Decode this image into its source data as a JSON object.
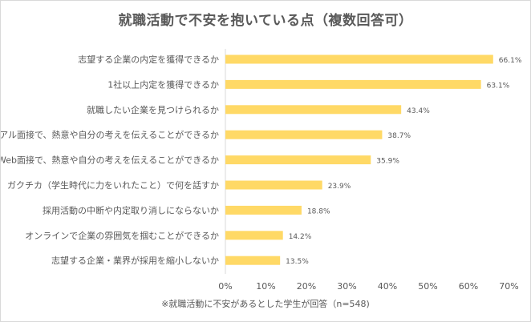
{
  "chart_data": {
    "type": "bar",
    "orientation": "horizontal",
    "title": "就職活動で不安を抱いている点（複数回答可）",
    "categories": [
      "志望する企業の内定を獲得できるか",
      "1社以上内定を獲得できるか",
      "就職したい企業を見つけられるか",
      "リアル面接で、熱意や自分の考えを伝えることができるか",
      "Web面接で、熱意や自分の考えを伝えることができるか",
      "ガクチカ（学生時代に力をいれたこと）で何を話すか",
      "採用活動の中断や内定取り消しにならないか",
      "オンラインで企業の雰囲気を掴むことができるか",
      "志望する企業・業界が採用を縮小しないか"
    ],
    "values": [
      66.1,
      63.1,
      43.4,
      38.7,
      35.9,
      23.9,
      18.8,
      14.2,
      13.5
    ],
    "value_labels": [
      "66.1%",
      "63.1%",
      "43.4%",
      "38.7%",
      "35.9%",
      "23.9%",
      "18.8%",
      "14.2%",
      "13.5%"
    ],
    "xticks": [
      "0%",
      "10%",
      "20%",
      "30%",
      "40%",
      "50%",
      "60%",
      "70%"
    ],
    "xlim": [
      0,
      70
    ],
    "grid": false,
    "legend": "none",
    "note": "※就職活動に不安があるとした学生が回答（n=548)",
    "colors": {
      "bar": "#FFD966",
      "text": "#595959",
      "axis": "#d9d9d9"
    }
  }
}
